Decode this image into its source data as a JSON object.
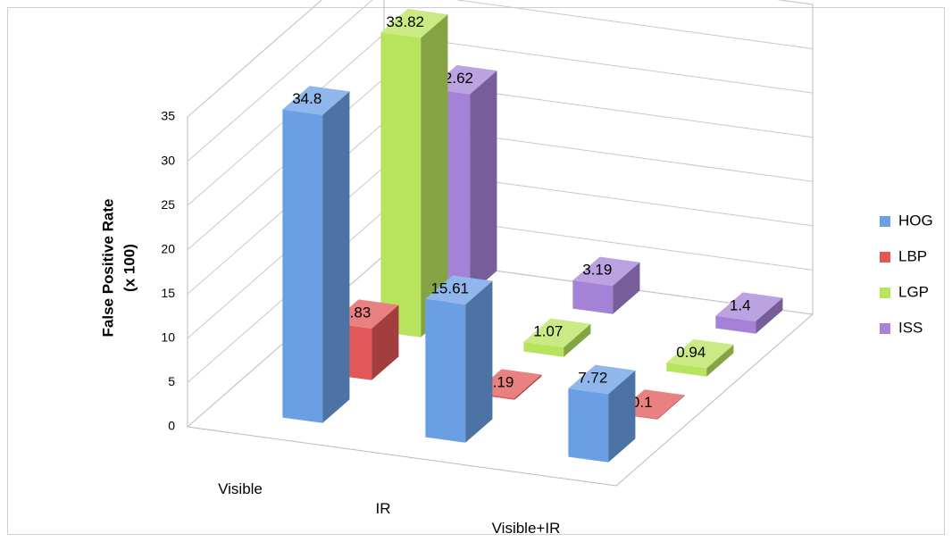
{
  "chart_data": {
    "type": "bar3d",
    "ylabel": [
      "False Positive Rate",
      "(x 100)"
    ],
    "categories": [
      "Visible",
      "IR",
      "Visible+IR"
    ],
    "series": [
      {
        "name": "HOG",
        "color": "#6b9fe4",
        "values": [
          34.8,
          15.61,
          7.72
        ]
      },
      {
        "name": "LBP",
        "color": "#e25757",
        "values": [
          5.83,
          0.19,
          0.1
        ]
      },
      {
        "name": "LGP",
        "color": "#b7e35d",
        "values": [
          33.82,
          1.07,
          0.94
        ]
      },
      {
        "name": "ISS",
        "color": "#a483d6",
        "values": [
          22.62,
          3.19,
          1.4
        ]
      }
    ],
    "ylim": [
      0,
      35
    ],
    "yticks": [
      0,
      5,
      10,
      15,
      20,
      25,
      30,
      35
    ],
    "grid": true,
    "legend": "right"
  }
}
